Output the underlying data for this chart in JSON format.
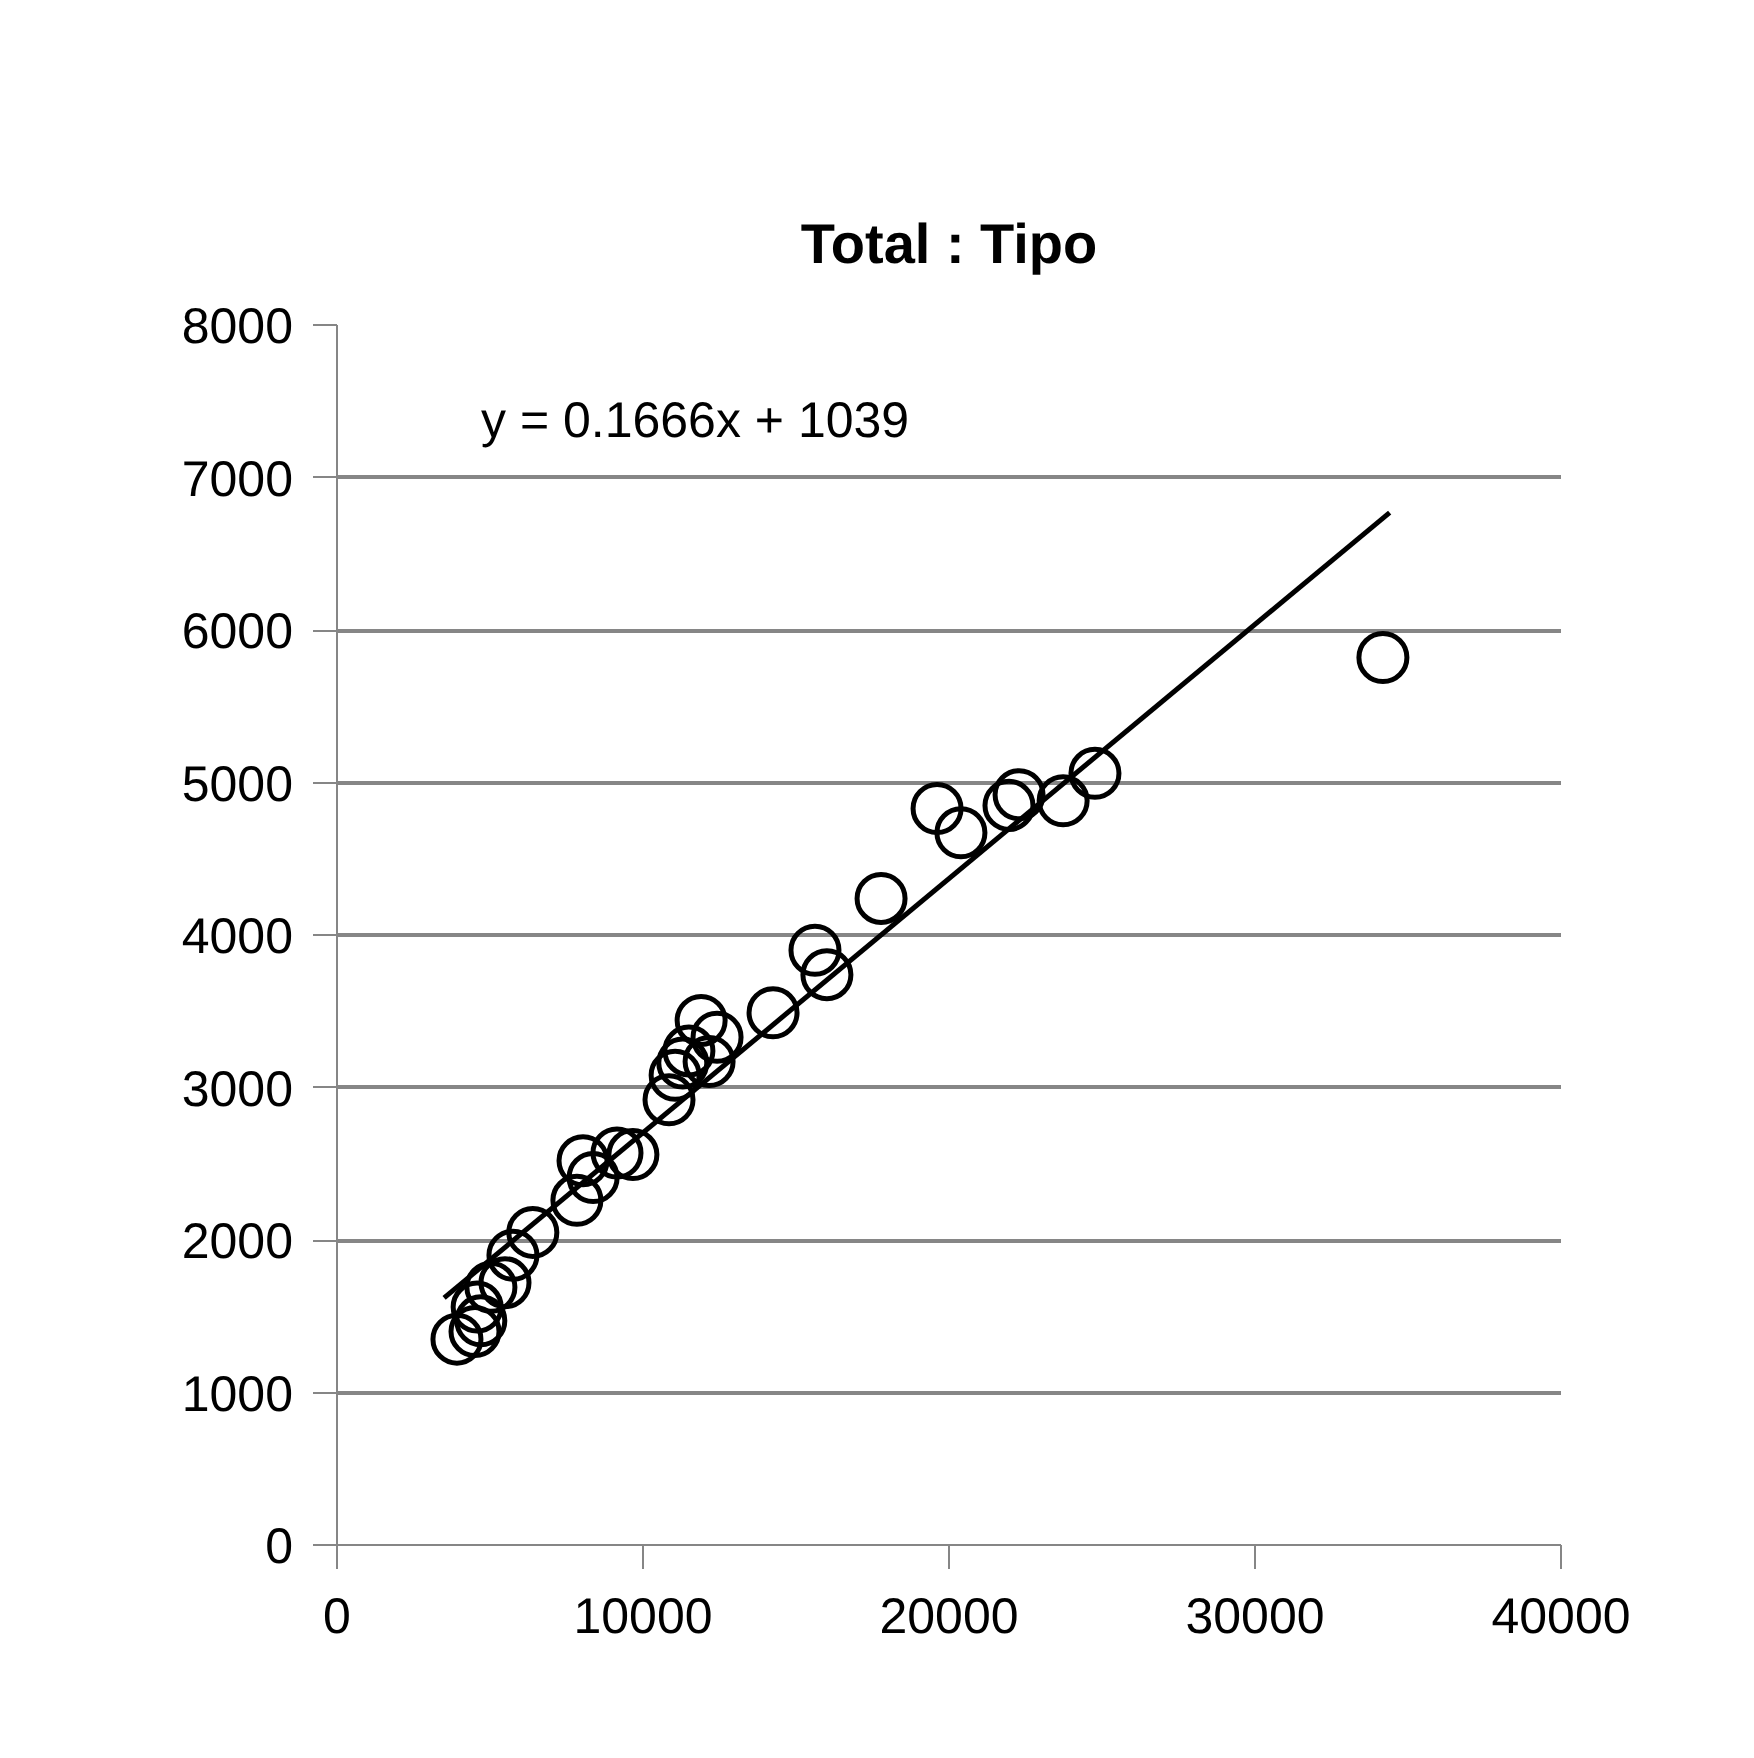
{
  "chart_data": {
    "type": "scatter",
    "title": "Total : Tipo",
    "xlim": [
      0,
      40000
    ],
    "ylim": [
      0,
      8000
    ],
    "xticks": [
      0,
      10000,
      20000,
      30000,
      40000
    ],
    "yticks": [
      0,
      1000,
      2000,
      3000,
      4000,
      5000,
      6000,
      7000,
      8000
    ],
    "grid": "y",
    "marker": "circle",
    "annotations": [
      "y = 0.1666x + 1039"
    ],
    "series": [
      {
        "color": "#000000",
        "x": [
          3920,
          4510,
          4700,
          4580,
          5030,
          5490,
          5750,
          6400,
          7840,
          8040,
          8370,
          9150,
          9670,
          10850,
          11050,
          11300,
          11500,
          11900,
          12160,
          12420,
          14250,
          15620,
          16010,
          17780,
          19610,
          20390,
          21960,
          22290,
          23730,
          24770,
          34180
        ],
        "values": [
          1350,
          1400,
          1470,
          1560,
          1690,
          1720,
          1900,
          2050,
          2260,
          2520,
          2410,
          2570,
          2560,
          2920,
          3080,
          3160,
          3240,
          3440,
          3170,
          3330,
          3490,
          3900,
          3740,
          4240,
          4830,
          4670,
          4850,
          4920,
          4880,
          5060,
          5820
        ]
      },
      {
        "type": "line",
        "color": "#000000",
        "line_style": "solid",
        "marker": "none",
        "x": [
          3500,
          34400
        ],
        "values": [
          1620,
          6770
        ]
      }
    ]
  }
}
